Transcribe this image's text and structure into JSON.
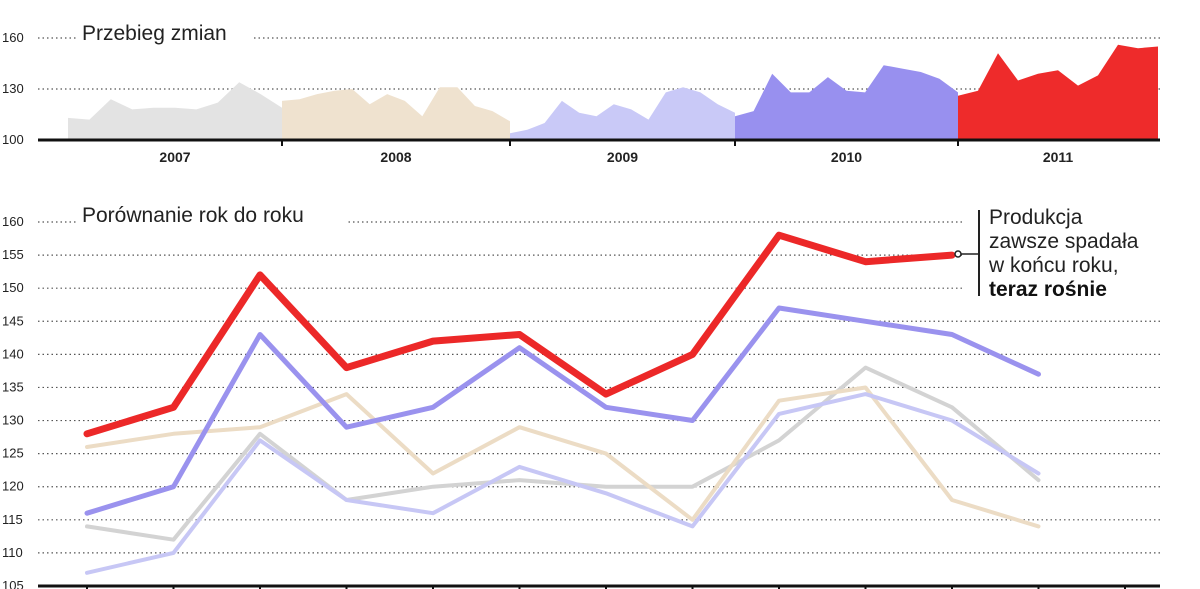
{
  "chart_data": [
    {
      "type": "area",
      "title": "Przebieg zmian",
      "ylim": [
        100,
        160
      ],
      "yticks": [
        "160",
        "130",
        "100"
      ],
      "year_labels": [
        "2007",
        "2008",
        "2009",
        "2010",
        "2011"
      ],
      "series": [
        {
          "name": "2007",
          "color": "#e3e3e3",
          "values": [
            113,
            112,
            124,
            118,
            119,
            119,
            118,
            122,
            134,
            127,
            119
          ]
        },
        {
          "name": "2008",
          "color": "#efe2cf",
          "values": [
            123,
            124,
            127,
            129,
            130,
            121,
            127,
            123,
            114,
            131,
            131,
            120,
            117,
            111
          ]
        },
        {
          "name": "2009",
          "color": "#c9c9f7",
          "values": [
            104,
            106,
            110,
            123,
            116,
            114,
            121,
            118,
            112,
            128,
            131,
            128,
            121,
            116
          ]
        },
        {
          "name": "2010",
          "color": "#9890ef",
          "values": [
            114,
            117,
            139,
            128,
            128,
            137,
            129,
            128,
            144,
            142,
            140,
            136,
            128
          ]
        },
        {
          "name": "2011",
          "color": "#ee2b2b",
          "values": [
            126,
            129,
            151,
            135,
            139,
            141,
            132,
            138,
            156,
            154,
            155
          ]
        }
      ]
    },
    {
      "type": "line",
      "title": "Porównanie rok do roku",
      "ylim": [
        105,
        160
      ],
      "yticks": [
        "160",
        "155",
        "150",
        "145",
        "140",
        "135",
        "130",
        "125",
        "120",
        "115",
        "110",
        "105"
      ],
      "series": [
        {
          "name": "2007",
          "color": "#d3d3d3",
          "values": [
            114,
            112,
            128,
            118,
            120,
            121,
            120,
            120,
            127,
            138,
            132,
            121
          ]
        },
        {
          "name": "2008",
          "color": "#ecdcc5",
          "values": [
            126,
            128,
            129,
            134,
            122,
            129,
            125,
            115,
            133,
            135,
            118,
            114
          ]
        },
        {
          "name": "2009",
          "color": "#c7c7f5",
          "values": [
            107,
            110,
            127,
            118,
            116,
            123,
            119,
            114,
            131,
            134,
            130,
            122
          ]
        },
        {
          "name": "2010",
          "color": "#9a92ee",
          "values": [
            116,
            120,
            143,
            129,
            132,
            141,
            132,
            130,
            147,
            145,
            143,
            137
          ]
        },
        {
          "name": "2011",
          "color": "#ec2828",
          "values": [
            128,
            132,
            152,
            138,
            142,
            143,
            134,
            140,
            158,
            154,
            155
          ]
        }
      ],
      "annotation": {
        "lines": [
          "Produkcja",
          "zawsze spadała",
          "w końcu roku,"
        ],
        "bold": "teraz rośnie"
      }
    }
  ]
}
